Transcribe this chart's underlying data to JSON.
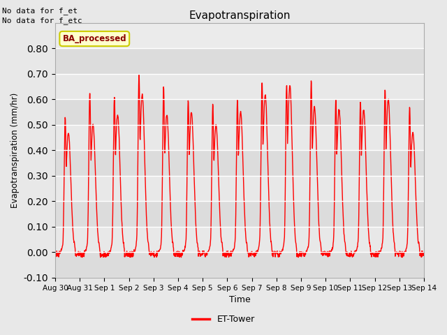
{
  "title": "Evapotranspiration",
  "ylabel": "Evapotranspiration (mm/hr)",
  "xlabel": "Time",
  "ylim": [
    -0.1,
    0.9
  ],
  "yticks": [
    -0.1,
    0.0,
    0.1,
    0.2,
    0.3,
    0.4,
    0.5,
    0.6,
    0.7,
    0.8
  ],
  "line_color": "red",
  "line_width": 1.0,
  "bg_color": "#e8e8e8",
  "plot_bg_color": "#ebebeb",
  "legend_label": "ET-Tower",
  "legend_line_color": "red",
  "badge_text": "BA_processed",
  "badge_bg": "#ffffcc",
  "badge_border": "#cccc00",
  "note_text1": "No data for f_et",
  "note_text2": "No data for f_etc",
  "x_tick_labels": [
    "Aug 30",
    "Aug 31",
    "Sep 1",
    "Sep 2",
    "Sep 3",
    "Sep 4",
    "Sep 5",
    "Sep 6",
    "Sep 7",
    "Sep 8",
    "Sep 9",
    "Sep 10",
    "Sep 11",
    "Sep 12",
    "Sep 13",
    "Sep 14"
  ],
  "x_tick_positions": [
    0,
    1,
    2,
    3,
    4,
    5,
    6,
    7,
    8,
    9,
    10,
    11,
    12,
    13,
    14,
    15
  ],
  "daily_peaks1": [
    0.53,
    0.63,
    0.61,
    0.7,
    0.65,
    0.6,
    0.58,
    0.6,
    0.67,
    0.66,
    0.67,
    0.6,
    0.59,
    0.64,
    0.57
  ],
  "daily_peaks2": [
    0.47,
    0.5,
    0.54,
    0.62,
    0.54,
    0.55,
    0.5,
    0.55,
    0.62,
    0.65,
    0.57,
    0.56,
    0.56,
    0.6,
    0.47
  ]
}
